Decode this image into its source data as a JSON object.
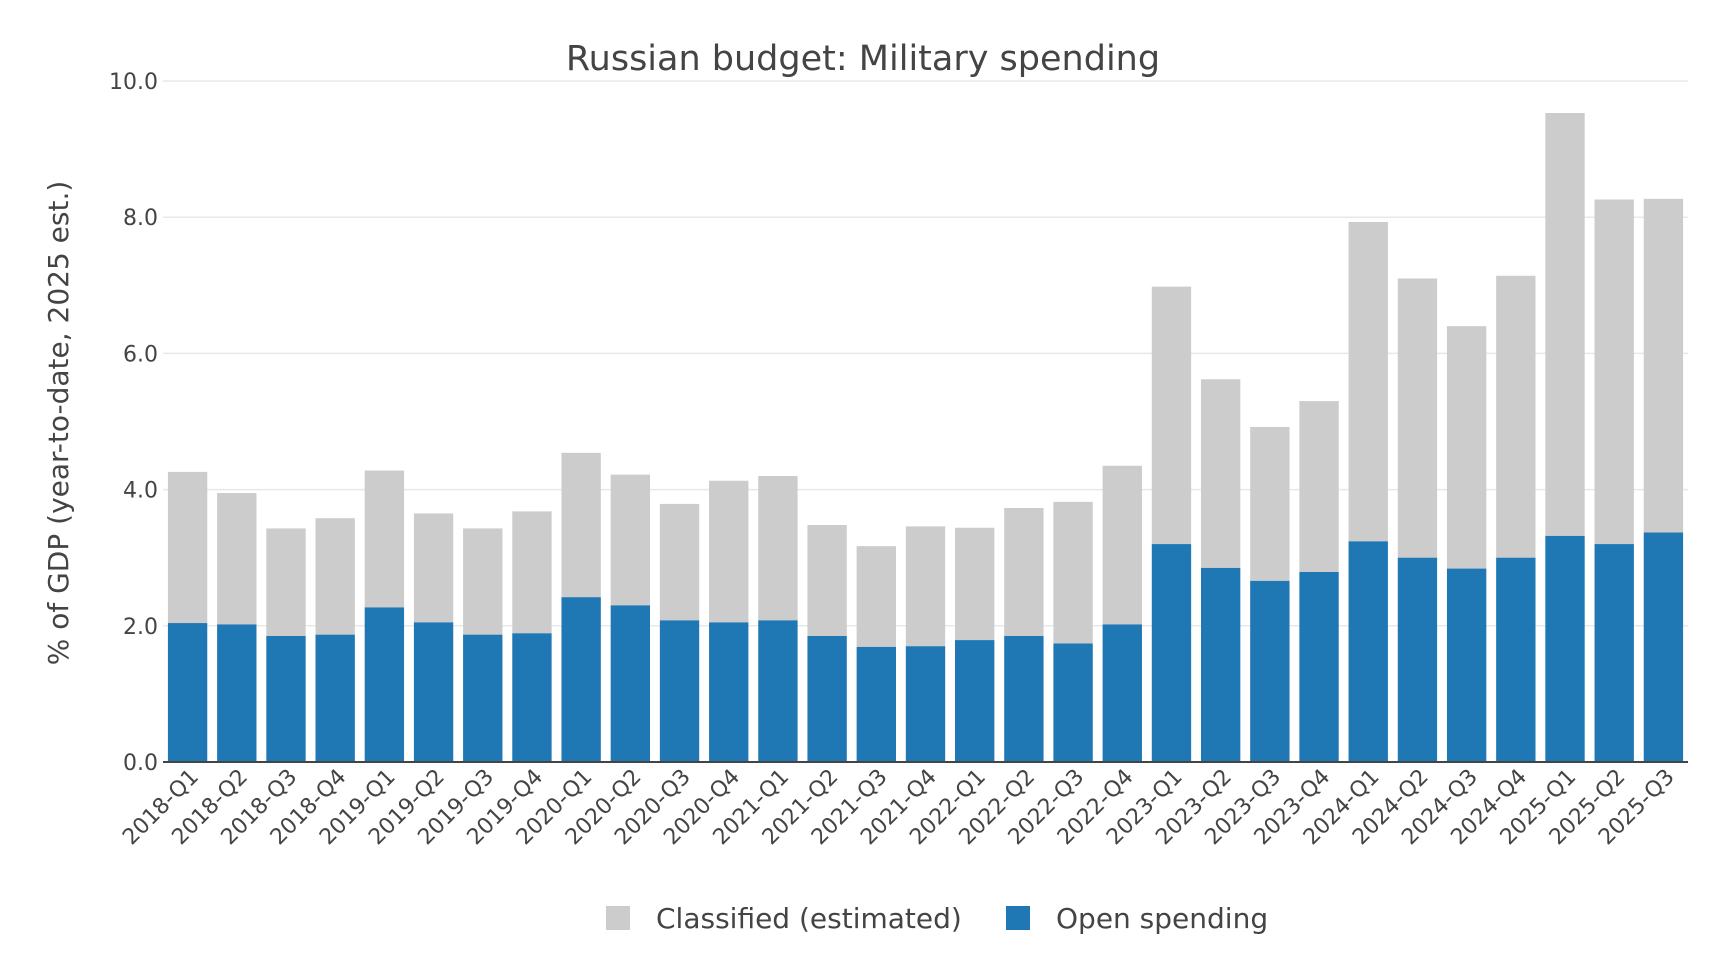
{
  "chart_data": {
    "type": "bar",
    "stacked": true,
    "title": "Russian budget: Military spending",
    "xlabel": "",
    "ylabel": "% of GDP (year-to-date, 2025 est.)",
    "ylim": [
      0,
      10
    ],
    "yticks": [
      "0.0",
      "2.0",
      "4.0",
      "6.0",
      "8.0",
      "10.0"
    ],
    "grid": true,
    "legend_position": "bottom-center",
    "categories": [
      "2018-Q1",
      "2018-Q2",
      "2018-Q3",
      "2018-Q4",
      "2019-Q1",
      "2019-Q2",
      "2019-Q3",
      "2019-Q4",
      "2020-Q1",
      "2020-Q2",
      "2020-Q3",
      "2020-Q4",
      "2021-Q1",
      "2021-Q2",
      "2021-Q3",
      "2021-Q4",
      "2022-Q1",
      "2022-Q2",
      "2022-Q3",
      "2022-Q4",
      "2023-Q1",
      "2023-Q2",
      "2023-Q3",
      "2023-Q4",
      "2024-Q1",
      "2024-Q2",
      "2024-Q3",
      "2024-Q4",
      "2025-Q1",
      "2025-Q2",
      "2025-Q3"
    ],
    "series": [
      {
        "name": "Open spending",
        "color": "#1f77b4",
        "values": [
          2.04,
          2.02,
          1.85,
          1.87,
          2.27,
          2.05,
          1.87,
          1.89,
          2.42,
          2.3,
          2.08,
          2.05,
          2.08,
          1.85,
          1.69,
          1.7,
          1.79,
          1.85,
          1.74,
          2.02,
          3.2,
          2.85,
          2.66,
          2.79,
          3.24,
          3.0,
          2.84,
          3.0,
          3.32,
          3.2,
          3.37
        ]
      },
      {
        "name": "Classified (estimated)",
        "color": "#cccccc",
        "values": [
          2.22,
          1.93,
          1.58,
          1.71,
          2.01,
          1.6,
          1.56,
          1.79,
          2.12,
          1.92,
          1.71,
          2.08,
          2.12,
          1.63,
          1.48,
          1.76,
          1.65,
          1.88,
          2.08,
          2.33,
          3.78,
          2.77,
          2.26,
          2.51,
          4.69,
          4.1,
          3.56,
          4.14,
          6.21,
          5.06,
          4.9
        ]
      }
    ],
    "legend": [
      {
        "name": "Classified (estimated)",
        "color": "#cccccc"
      },
      {
        "name": "Open spending",
        "color": "#1f77b4"
      }
    ]
  }
}
